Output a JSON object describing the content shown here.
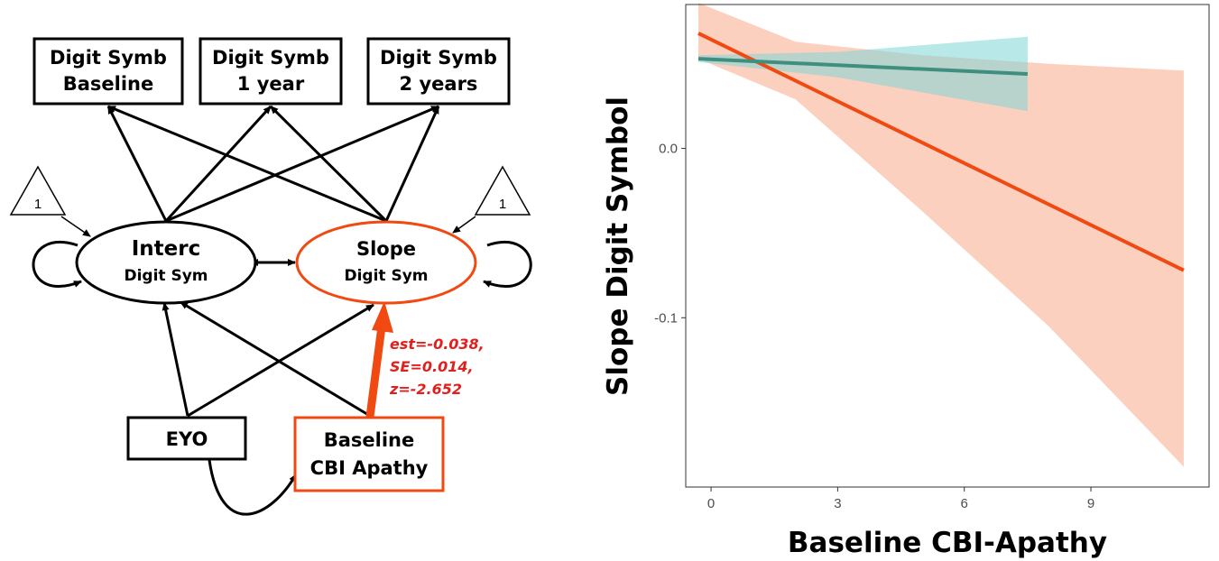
{
  "diagram": {
    "boxes": {
      "ds_baseline": [
        "Digit Symb",
        "Baseline"
      ],
      "ds_1year": [
        "Digit Symb",
        "1 year"
      ],
      "ds_2years": [
        "Digit Symb",
        "2 years"
      ],
      "eyo": "EYO",
      "cbi": [
        "Baseline",
        "CBI Apathy"
      ]
    },
    "latents": {
      "intercept": [
        "Interc",
        "Digit Sym"
      ],
      "slope": [
        "Slope",
        "Digit Sym"
      ]
    },
    "constants": [
      "1",
      "1"
    ],
    "estimate": [
      "est=-0.038,",
      "SE=0.014,",
      "z=-2.652"
    ],
    "colors": {
      "highlight": "#f04a12",
      "estimate_text": "#e0201c",
      "line": "#000000"
    }
  },
  "chart_data": {
    "type": "line",
    "title": "",
    "xlabel": "Baseline CBI-Apathy",
    "ylabel": "Slope Digit Symbol",
    "xlim": [
      -0.6,
      11.8
    ],
    "ylim": [
      -0.2,
      0.085
    ],
    "xticks": [
      0,
      3,
      6,
      9
    ],
    "yticks": [
      0.0,
      -0.1
    ],
    "ytick_labels": [
      "0.0",
      "-0.1"
    ],
    "grid": false,
    "legend": "none",
    "series": [
      {
        "color": "#f04a12",
        "band_color": "#f9a98a",
        "x": [
          -0.3,
          11.2
        ],
        "y": [
          0.068,
          -0.072
        ],
        "band": [
          {
            "x": -0.3,
            "lo": 0.053,
            "hi": 0.086
          },
          {
            "x": 2,
            "lo": 0.029,
            "hi": 0.063
          },
          {
            "x": 5,
            "lo": -0.037,
            "hi": 0.055
          },
          {
            "x": 8,
            "lo": -0.105,
            "hi": 0.05
          },
          {
            "x": 11.2,
            "lo": -0.188,
            "hi": 0.046
          }
        ]
      },
      {
        "color": "#3f8f80",
        "band_color": "#7fd6d6",
        "x": [
          -0.3,
          7.5
        ],
        "y": [
          0.053,
          0.044
        ],
        "band": [
          {
            "x": -0.3,
            "lo": 0.051,
            "hi": 0.055
          },
          {
            "x": 3,
            "lo": 0.042,
            "hi": 0.057
          },
          {
            "x": 7.5,
            "lo": 0.022,
            "hi": 0.066
          }
        ]
      }
    ]
  }
}
